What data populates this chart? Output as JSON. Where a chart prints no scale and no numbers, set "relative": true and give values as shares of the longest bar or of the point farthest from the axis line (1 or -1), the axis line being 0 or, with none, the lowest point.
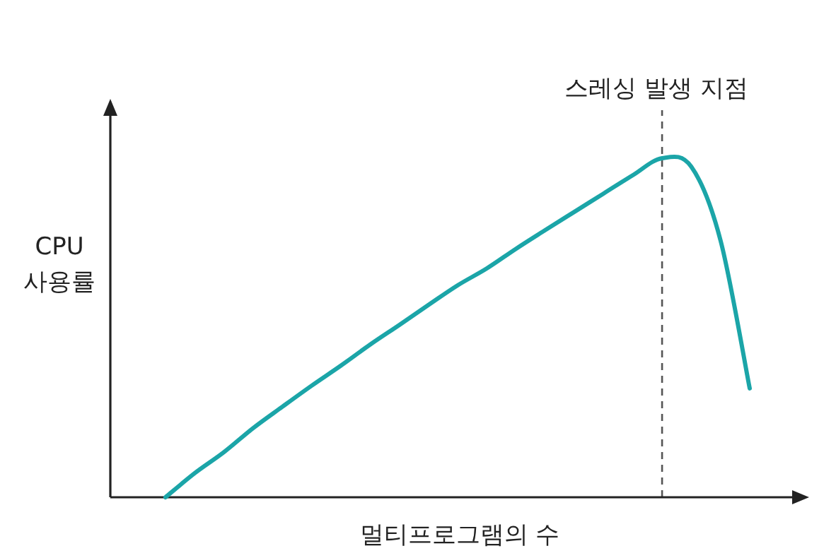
{
  "chart_data": {
    "type": "line",
    "relative": true,
    "xlabel": "멀티프로그램의 수",
    "ylabel": "CPU 사용률",
    "categories": [
      null,
      null,
      null,
      null,
      null,
      null,
      null,
      null,
      null,
      null,
      null,
      null,
      null,
      null,
      null,
      null,
      null,
      null,
      null,
      null,
      null
    ],
    "series": [
      {
        "color": "#1ba5a8",
        "values": [
          0,
          0.071,
          0.133,
          0.204,
          0.267,
          0.329,
          0.388,
          0.45,
          0.508,
          0.567,
          0.625,
          0.675,
          0.733,
          0.788,
          0.842,
          0.896,
          0.95,
          1,
          0.975,
          0.758,
          0.321
        ]
      }
    ],
    "annotations": [
      "스레싱 발생 지점"
    ]
  }
}
